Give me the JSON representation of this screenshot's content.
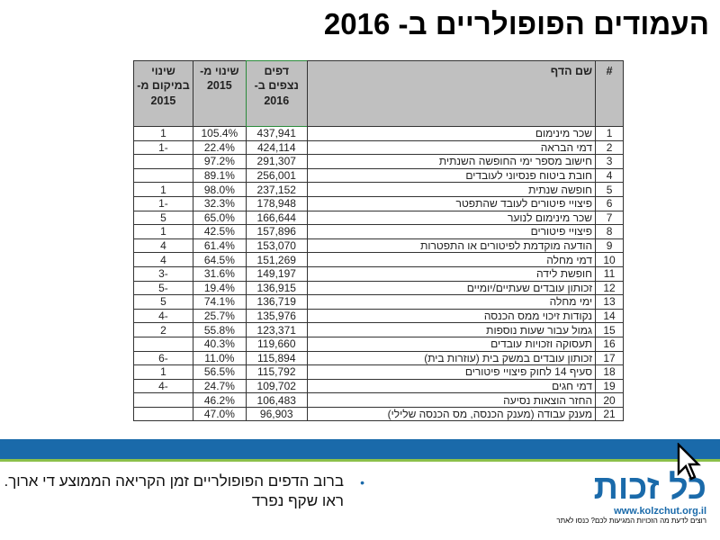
{
  "title": "העמודים הפופולריים ב- 2016",
  "table": {
    "headers": {
      "num": "#",
      "name": "שם הדף",
      "views": "דפים נצפים ב- 2016",
      "pct": "שינוי מ- 2015",
      "rank": "שינוי במיקום מ- 2015"
    },
    "rows": [
      {
        "num": "1",
        "name": "שכר מינימום",
        "views": "437,941",
        "pct": "105.4%",
        "rank": "1"
      },
      {
        "num": "2",
        "name": "דמי הבראה",
        "views": "424,114",
        "pct": "22.4%",
        "rank": "-1"
      },
      {
        "num": "3",
        "name": "חישוב מספר ימי החופשה השנתית",
        "views": "291,307",
        "pct": "97.2%",
        "rank": ""
      },
      {
        "num": "4",
        "name": "חובת ביטוח פנסיוני לעובדים",
        "views": "256,001",
        "pct": "89.1%",
        "rank": ""
      },
      {
        "num": "5",
        "name": "חופשה שנתית",
        "views": "237,152",
        "pct": "98.0%",
        "rank": "1"
      },
      {
        "num": "6",
        "name": "פיצויי פיטורים לעובד שהתפטר",
        "views": "178,948",
        "pct": "32.3%",
        "rank": "-1"
      },
      {
        "num": "7",
        "name": "שכר מינימום לנוער",
        "views": "166,644",
        "pct": "65.0%",
        "rank": "5"
      },
      {
        "num": "8",
        "name": "פיצויי פיטורים",
        "views": "157,896",
        "pct": "42.5%",
        "rank": "1"
      },
      {
        "num": "9",
        "name": "הודעה מוקדמת לפיטורים או התפטרות",
        "views": "153,070",
        "pct": "61.4%",
        "rank": "4"
      },
      {
        "num": "10",
        "name": "דמי מחלה",
        "views": "151,269",
        "pct": "64.5%",
        "rank": "4"
      },
      {
        "num": "11",
        "name": "חופשת לידה",
        "views": "149,197",
        "pct": "31.6%",
        "rank": "-3"
      },
      {
        "num": "12",
        "name": "זכותון עובדים שעתיים/יומיים",
        "views": "136,915",
        "pct": "19.4%",
        "rank": "-5"
      },
      {
        "num": "13",
        "name": "ימי מחלה",
        "views": "136,719",
        "pct": "74.1%",
        "rank": "5"
      },
      {
        "num": "14",
        "name": "נקודות זיכוי ממס הכנסה",
        "views": "135,976",
        "pct": "25.7%",
        "rank": "-4"
      },
      {
        "num": "15",
        "name": "גמול עבור שעות נוספות",
        "views": "123,371",
        "pct": "55.8%",
        "rank": "2"
      },
      {
        "num": "16",
        "name": "תעסוקה וזכויות עובדים",
        "views": "119,660",
        "pct": "40.3%",
        "rank": ""
      },
      {
        "num": "17",
        "name": "זכותון עובדים במשק בית (עוזרות בית)",
        "views": "115,894",
        "pct": "11.0%",
        "rank": "-6"
      },
      {
        "num": "18",
        "name": "סעיף 14 לחוק פיצויי פיטורים",
        "views": "115,792",
        "pct": "56.5%",
        "rank": "1"
      },
      {
        "num": "19",
        "name": "דמי חגים",
        "views": "109,702",
        "pct": "24.7%",
        "rank": "-4"
      },
      {
        "num": "20",
        "name": "החזר הוצאות נסיעה",
        "views": "106,483",
        "pct": "46.2%",
        "rank": ""
      },
      {
        "num": "21",
        "name": "מענק עבודה (מענק הכנסה, מס הכנסה שלילי)",
        "views": "96,903",
        "pct": "47.0%",
        "rank": ""
      }
    ]
  },
  "note": "ברוב הדפים הפופולריים זמן הקריאה הממוצע די ארוך. ראו שקף נפרד",
  "logo": {
    "text": "כל זכות",
    "url": "www.kolzchut.org.il",
    "tagline": "רוצים לדעת מה הזכויות המגיעות לכם? כנסו לאתר"
  },
  "colors": {
    "band": "#1a6aaa",
    "accent_line": "#8cc04a",
    "header_bg": "#c0c0c0"
  },
  "icons": {
    "cursor": "mouse-pointer-icon",
    "bullet": "bullet-icon"
  }
}
